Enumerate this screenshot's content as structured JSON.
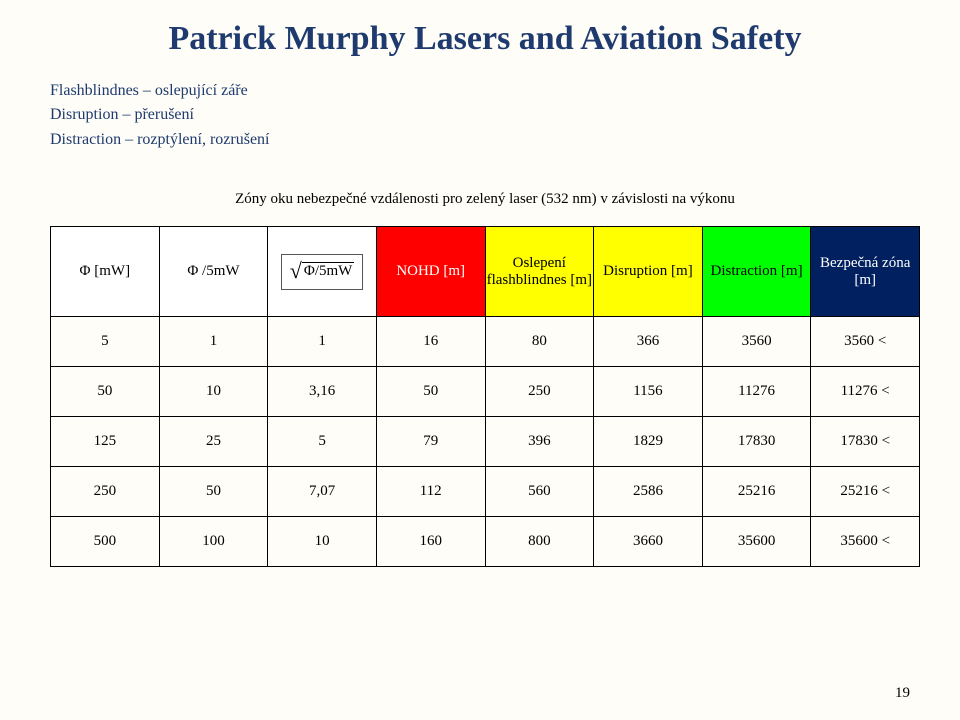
{
  "title": "Patrick Murphy Lasers and Aviation Safety",
  "definitions": [
    "Flashblindnes – oslepující záře",
    "Disruption – přerušení",
    "Distraction – rozptýlení, rozrušení"
  ],
  "table": {
    "caption": "Zóny oku nebezpečné vzdálenosti pro zelený laser (532 nm) v závislosti na výkonu",
    "columns": [
      {
        "label": "Φ [mW]",
        "bg": "#ffffff",
        "fg": "#000000"
      },
      {
        "label": "Φ /5mW",
        "bg": "#ffffff",
        "fg": "#000000"
      },
      {
        "label": "__FORMULA__",
        "bg": "#ffffff",
        "fg": "#000000"
      },
      {
        "label": "NOHD [m]",
        "bg": "#ff0000",
        "fg": "#ffffff"
      },
      {
        "label": "Oslepení flashblindnes [m]",
        "bg": "#ffff00",
        "fg": "#000000"
      },
      {
        "label": "Disruption [m]",
        "bg": "#ffff00",
        "fg": "#000000"
      },
      {
        "label": "Distraction [m]",
        "bg": "#00ff00",
        "fg": "#000000"
      },
      {
        "label": "Bezpečná zóna [m]",
        "bg": "#002060",
        "fg": "#ffffff"
      }
    ],
    "rows": [
      [
        "5",
        "1",
        "1",
        "16",
        "80",
        "366",
        "3560",
        "3560 <"
      ],
      [
        "50",
        "10",
        "3,16",
        "50",
        "250",
        "1156",
        "11276",
        "11276 <"
      ],
      [
        "125",
        "25",
        "5",
        "79",
        "396",
        "1829",
        "17830",
        "17830 <"
      ],
      [
        "250",
        "50",
        "7,07",
        "112",
        "560",
        "2586",
        "25216",
        "25216 <"
      ],
      [
        "500",
        "100",
        "10",
        "160",
        "800",
        "3660",
        "35600",
        "35600 <"
      ]
    ]
  },
  "formula": {
    "radicand": "Φ/5mW"
  },
  "page_number": "19",
  "colors": {
    "page_bg": "#fefdf7",
    "title_fg": "#1e3a6e",
    "defs_fg": "#1e3a6e"
  }
}
